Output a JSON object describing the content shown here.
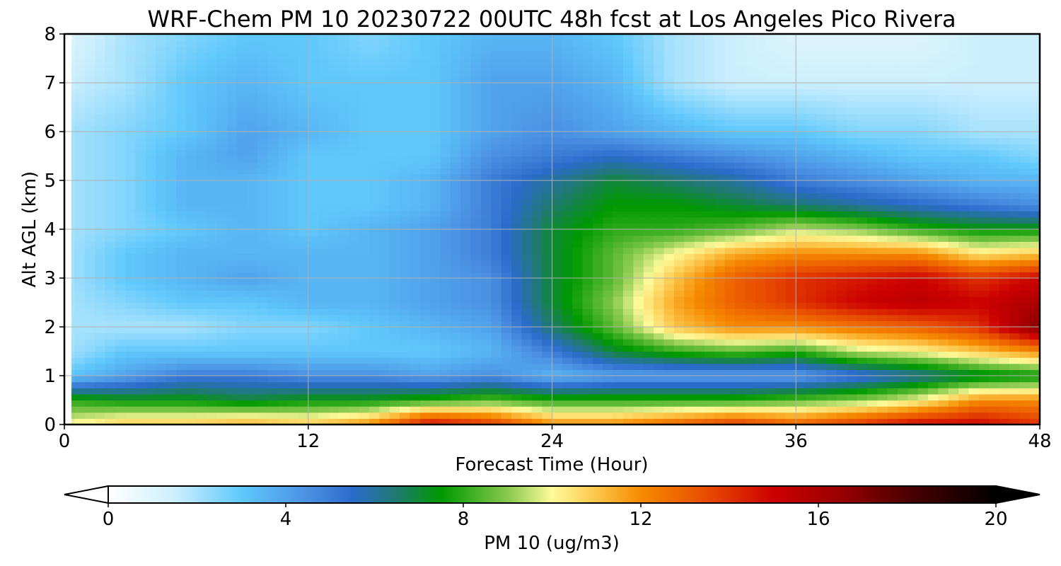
{
  "chart_data": {
    "type": "heatmap",
    "title": "WRF-Chem PM 10  20230722 00UTC 48h fcst at Los Angeles Pico Rivera",
    "xlabel": "Forecast Time (Hour)",
    "ylabel": "Alt AGL (km)",
    "xlim": [
      0,
      48
    ],
    "ylim": [
      0,
      8
    ],
    "xticks": [
      0,
      12,
      24,
      36,
      48
    ],
    "yticks": [
      0,
      1,
      2,
      3,
      4,
      5,
      6,
      7,
      8
    ],
    "grid": true,
    "x": [
      0,
      3,
      6,
      9,
      12,
      15,
      18,
      21,
      24,
      27,
      30,
      33,
      36,
      39,
      42,
      45,
      48
    ],
    "y": [
      0,
      0.5,
      1,
      1.5,
      2,
      2.5,
      3,
      3.5,
      4,
      4.5,
      5,
      5.5,
      6,
      7,
      8
    ],
    "z": [
      [
        10,
        11,
        11,
        11.5,
        11,
        12,
        15,
        14,
        12,
        12,
        13,
        14,
        13,
        14,
        15,
        15,
        14
      ],
      [
        8,
        7.5,
        7.5,
        7,
        7.5,
        7.5,
        8,
        8.5,
        8,
        8,
        8,
        8,
        8.5,
        9,
        10,
        12,
        12
      ],
      [
        3,
        4,
        5,
        5,
        4.5,
        4.5,
        4,
        4.5,
        3.5,
        4,
        4,
        4,
        4,
        5,
        6,
        7,
        7.5
      ],
      [
        2,
        3,
        3,
        3,
        3,
        3,
        3,
        3.5,
        5,
        7,
        8,
        8.5,
        8,
        9.5,
        10,
        11,
        12
      ],
      [
        2,
        2,
        2,
        2.5,
        2.5,
        3,
        3.5,
        4,
        6.5,
        8.5,
        11,
        12,
        12,
        12.5,
        13,
        14,
        17
      ],
      [
        2,
        2.5,
        3,
        3,
        3.5,
        3.5,
        4,
        4.5,
        7,
        9,
        11.5,
        13,
        14,
        15,
        15.5,
        15,
        16
      ],
      [
        2,
        3,
        3.5,
        4,
        3.5,
        3.5,
        4,
        4.5,
        7,
        8.5,
        11,
        13,
        14,
        14.5,
        15,
        14,
        15
      ],
      [
        2,
        3,
        3.5,
        3.5,
        3.5,
        3.5,
        4,
        5,
        7,
        8.5,
        10,
        11.5,
        12,
        12,
        12,
        10.5,
        11
      ],
      [
        2,
        2.5,
        3,
        3.5,
        3,
        3.5,
        4,
        5,
        7,
        8,
        8,
        8.5,
        9.5,
        9,
        8,
        7.5,
        7.5
      ],
      [
        2,
        2.5,
        3.5,
        3.5,
        3,
        3,
        3.5,
        5,
        6.5,
        7.5,
        7.5,
        7,
        6.5,
        6,
        5.5,
        5,
        4.5
      ],
      [
        2,
        2.5,
        3.5,
        3.5,
        3,
        3,
        3.5,
        5,
        6,
        7,
        6.5,
        6,
        5,
        4.5,
        4,
        3.5,
        3.5
      ],
      [
        2,
        2.5,
        3.5,
        4,
        3,
        3,
        3,
        4.5,
        5,
        5.5,
        5,
        4.5,
        4,
        3.5,
        3,
        3,
        2.5
      ],
      [
        2,
        2.5,
        3,
        4,
        3.5,
        3,
        3,
        4,
        4.5,
        4,
        3.5,
        3,
        3,
        2.5,
        2.5,
        2,
        2
      ],
      [
        1.5,
        2,
        3,
        3.5,
        3,
        3,
        3,
        4,
        4,
        3.5,
        2,
        1.5,
        1.5,
        1.5,
        1.5,
        1.5,
        1.5
      ],
      [
        1,
        2,
        2.5,
        3,
        3,
        2.5,
        3,
        3.5,
        3.5,
        3,
        2,
        1.5,
        1,
        1,
        1,
        1.5,
        1.5
      ]
    ],
    "colorbar": {
      "label": "PM 10  (ug/m3)",
      "min": 0,
      "max": 20,
      "ticks": [
        0,
        4,
        8,
        12,
        16,
        20
      ],
      "extend": "both",
      "colors": [
        {
          "v": 0,
          "c": "#ffffff"
        },
        {
          "v": 1.5,
          "c": "#cdeffd"
        },
        {
          "v": 3,
          "c": "#5fc8fc"
        },
        {
          "v": 4.5,
          "c": "#4a90e2"
        },
        {
          "v": 5.5,
          "c": "#2a6ccc"
        },
        {
          "v": 6.5,
          "c": "#1f7a6e"
        },
        {
          "v": 7.5,
          "c": "#009900"
        },
        {
          "v": 9,
          "c": "#88c94d"
        },
        {
          "v": 10,
          "c": "#fefa9a"
        },
        {
          "v": 11,
          "c": "#fcc64a"
        },
        {
          "v": 12,
          "c": "#f68a00"
        },
        {
          "v": 13.5,
          "c": "#e84b00"
        },
        {
          "v": 15,
          "c": "#cc0000"
        },
        {
          "v": 16.5,
          "c": "#990000"
        },
        {
          "v": 18,
          "c": "#4d0000"
        },
        {
          "v": 20,
          "c": "#000000"
        }
      ]
    }
  }
}
